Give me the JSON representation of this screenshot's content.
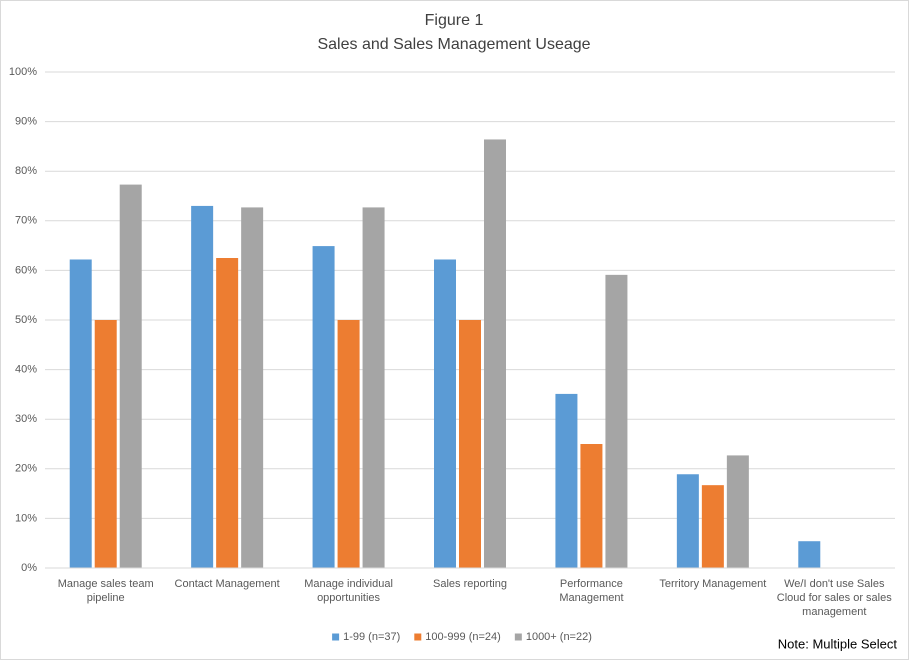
{
  "chart_data": {
    "type": "bar",
    "title": [
      "Figure 1",
      "Sales and Sales Management Useage"
    ],
    "categories": [
      "Manage sales team pipeline",
      "Contact Management",
      "Manage individual opportunities",
      "Sales reporting",
      "Performance Management",
      "Territory Management",
      "We/I don't use Sales Cloud for sales or sales management"
    ],
    "series": [
      {
        "name": "1-99 (n=37)",
        "color": "#5b9bd5",
        "values": [
          62.2,
          73.0,
          64.9,
          62.2,
          35.1,
          18.9,
          5.4
        ]
      },
      {
        "name": "100-999 (n=24)",
        "color": "#ed7d31",
        "values": [
          50.0,
          62.5,
          50.0,
          50.0,
          25.0,
          16.7,
          0
        ]
      },
      {
        "name": "1000+ (n=22)",
        "color": "#a5a5a5",
        "values": [
          77.3,
          72.7,
          72.7,
          86.4,
          59.1,
          22.7,
          0
        ]
      }
    ],
    "ylim": [
      0,
      100
    ],
    "yticks": [
      {
        "value": 0,
        "label": "0%"
      },
      {
        "value": 10,
        "label": "10%"
      },
      {
        "value": 20,
        "label": "20%"
      },
      {
        "value": 30,
        "label": "30%"
      },
      {
        "value": 40,
        "label": "40%"
      },
      {
        "value": 50,
        "label": "50%"
      },
      {
        "value": 60,
        "label": "60%"
      },
      {
        "value": 70,
        "label": "70%"
      },
      {
        "value": 80,
        "label": "80%"
      },
      {
        "value": 90,
        "label": "90%"
      },
      {
        "value": 100,
        "label": "100%"
      }
    ],
    "grid": true,
    "legend": "bottom",
    "annotation": "Note: Multiple Select"
  }
}
